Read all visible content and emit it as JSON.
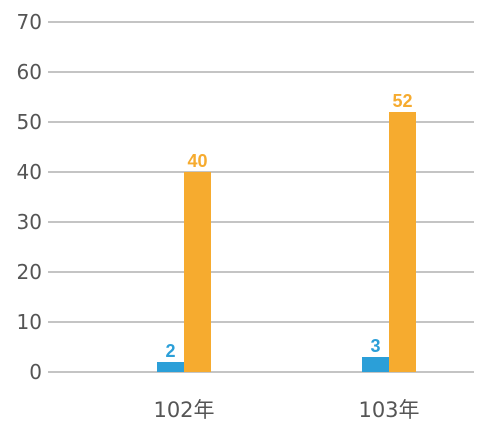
{
  "chart_data": {
    "type": "bar",
    "categories": [
      "102年",
      "103年"
    ],
    "series": [
      {
        "values": [
          2,
          3
        ],
        "color": "#2b9fd8"
      },
      {
        "values": [
          40,
          52
        ],
        "color": "#f6ab2f"
      }
    ],
    "yticks": [
      "0",
      "10",
      "20",
      "30",
      "40",
      "50",
      "60",
      "70"
    ],
    "ylim": [
      0,
      70
    ],
    "grid": true,
    "data_labels": {
      "s0": [
        "2",
        "3"
      ],
      "s1": [
        "40",
        "52"
      ]
    }
  }
}
